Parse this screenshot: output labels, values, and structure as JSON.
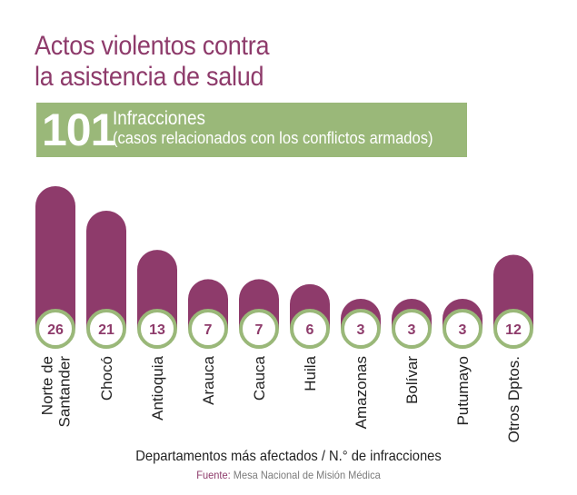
{
  "title_lines": [
    "Actos violentos contra",
    "la asistencia de salud"
  ],
  "banner": {
    "total": "101",
    "label": "Infracciones",
    "sublabel": "(casos relacionados con los conflictos armados)"
  },
  "chart_data": {
    "type": "bar",
    "categories": [
      "Norte de Santander",
      "Chocó",
      "Antioquia",
      "Arauca",
      "Cauca",
      "Huila",
      "Amazonas",
      "Bolívar",
      "Putumayo",
      "Otros Dptos."
    ],
    "category_lines": [
      [
        "Norte de",
        "Santander"
      ],
      [
        "Chocó"
      ],
      [
        "Antioquia"
      ],
      [
        "Arauca"
      ],
      [
        "Cauca"
      ],
      [
        "Huila"
      ],
      [
        "Amazonas"
      ],
      [
        "Bolívar"
      ],
      [
        "Putumayo"
      ],
      [
        "Otros Dptos."
      ]
    ],
    "values": [
      26,
      21,
      13,
      7,
      7,
      6,
      3,
      3,
      3,
      12
    ],
    "xlabel": "Departamentos más afectados / N.° de infracciones",
    "ylabel": "",
    "ylim": [
      0,
      26
    ],
    "grid": false,
    "colors": {
      "bar": "#8e3b6b",
      "accent": "#9ab879",
      "label_text": "#8e3b6b"
    }
  },
  "source": {
    "prefix": "Fuente:",
    "text": "Mesa Nacional de Misión Médica"
  }
}
